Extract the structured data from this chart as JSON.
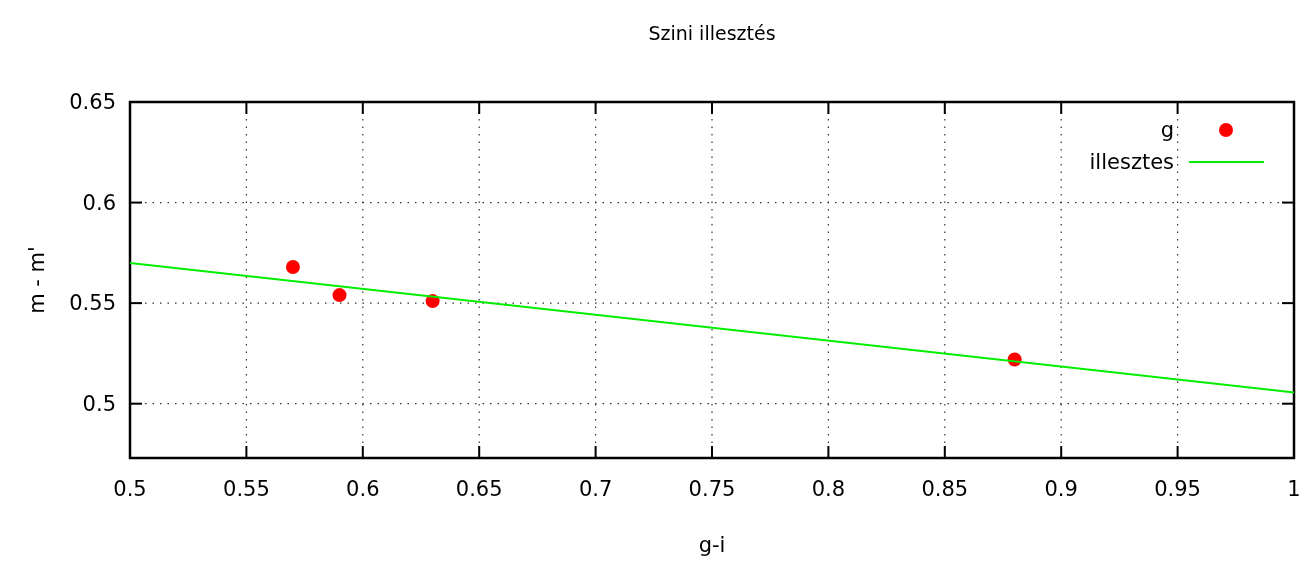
{
  "chart_data": {
    "type": "scatter",
    "title": "Szini illesztés",
    "xlabel": "g-i",
    "ylabel": "m - m'",
    "series": [
      {
        "name": "g",
        "marker": "circle",
        "color": "#ff0000",
        "x": [
          0.57,
          0.59,
          0.63,
          0.88
        ],
        "values": [
          0.568,
          0.554,
          0.551,
          0.522
        ]
      },
      {
        "name": "illesztes",
        "type": "line",
        "color": "#00ee00",
        "x": [
          0.5,
          1
        ],
        "values": [
          0.57,
          0.5056
        ]
      }
    ],
    "xlim": [
      0.5,
      1
    ],
    "xticks": [
      0.5,
      0.55,
      0.6,
      0.65,
      0.7,
      0.75,
      0.8,
      0.85,
      0.9,
      0.95,
      1
    ],
    "ylim": [
      0.473,
      0.65
    ],
    "yticks": [
      0.5,
      0.55,
      0.6,
      0.65
    ],
    "grid": true,
    "legend": "top right"
  }
}
